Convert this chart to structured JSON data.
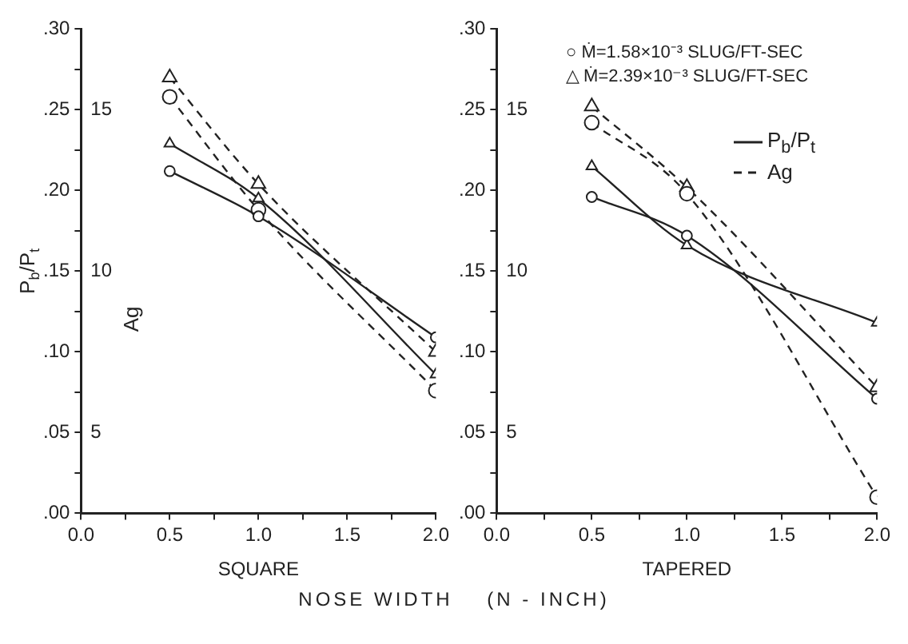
{
  "chart_data": [
    {
      "type": "line",
      "xlabel": "SQUARE",
      "ylabel": "P$_{b}$/P$_{t}$",
      "y2label": "Ag",
      "x": [
        0.5,
        1.0,
        2.0
      ],
      "xlim": [
        0,
        2
      ],
      "xticks": [
        {
          "value": 0,
          "label": "0.0"
        },
        {
          "value": 0.25,
          "label": null
        },
        {
          "value": 0.5,
          "label": "0.5"
        },
        {
          "value": 0.75,
          "label": null
        },
        {
          "value": 1,
          "label": "1.0"
        },
        {
          "value": 1.25,
          "label": null
        },
        {
          "value": 1.5,
          "label": "1.5"
        },
        {
          "value": 1.75,
          "label": null
        },
        {
          "value": 2,
          "label": "2.0"
        }
      ],
      "ylim": [
        0,
        0.3
      ],
      "yticks": [
        {
          "value": 0,
          "label": ".00"
        },
        {
          "value": 0.025,
          "label": null
        },
        {
          "value": 0.05,
          "label": ".05"
        },
        {
          "value": 0.075,
          "label": null
        },
        {
          "value": 0.1,
          "label": ".10"
        },
        {
          "value": 0.125,
          "label": null
        },
        {
          "value": 0.15,
          "label": ".15"
        },
        {
          "value": 0.175,
          "label": null
        },
        {
          "value": 0.2,
          "label": ".20"
        },
        {
          "value": 0.225,
          "label": null
        },
        {
          "value": 0.25,
          "label": ".25"
        },
        {
          "value": 0.275,
          "label": null
        },
        {
          "value": 0.3,
          "label": ".30"
        }
      ],
      "y2lim": [
        2.5,
        17.5
      ],
      "y2ticks": [
        5,
        10,
        15
      ],
      "grid": false,
      "series": [
        {
          "color": "#222222",
          "values": [
            0.212,
            0.184,
            0.109
          ],
          "marker": "circle",
          "line_style": "solid"
        },
        {
          "color": "#222222",
          "values": [
            0.229,
            0.195,
            0.086
          ],
          "marker": "triangle",
          "line_style": "solid"
        },
        {
          "color": "#222222",
          "values": [
            15.4,
            11.9,
            6.3
          ],
          "marker": "circle",
          "line_style": "dashed",
          "axis": "y2"
        },
        {
          "color": "#222222",
          "values": [
            16.0,
            12.7,
            7.5
          ],
          "marker": "triangle",
          "line_style": "dashed",
          "axis": "y2"
        }
      ],
      "annotations": [
        "NOSE WIDTH    (N - INCH)"
      ]
    },
    {
      "type": "line",
      "xlabel": "TAPERED",
      "x": [
        0.5,
        1.0,
        2.0
      ],
      "xlim": [
        0,
        2
      ],
      "xticks": [
        {
          "value": 0,
          "label": "0.0"
        },
        {
          "value": 0.25,
          "label": null
        },
        {
          "value": 0.5,
          "label": "0.5"
        },
        {
          "value": 0.75,
          "label": null
        },
        {
          "value": 1,
          "label": "1.0"
        },
        {
          "value": 1.25,
          "label": null
        },
        {
          "value": 1.5,
          "label": "1.5"
        },
        {
          "value": 1.75,
          "label": null
        },
        {
          "value": 2,
          "label": "2.0"
        }
      ],
      "ylim": [
        0,
        0.3
      ],
      "yticks": [
        {
          "value": 0,
          "label": ".00"
        },
        {
          "value": 0.025,
          "label": null
        },
        {
          "value": 0.05,
          "label": ".05"
        },
        {
          "value": 0.075,
          "label": null
        },
        {
          "value": 0.1,
          "label": ".10"
        },
        {
          "value": 0.125,
          "label": null
        },
        {
          "value": 0.15,
          "label": ".15"
        },
        {
          "value": 0.175,
          "label": null
        },
        {
          "value": 0.2,
          "label": ".20"
        },
        {
          "value": 0.225,
          "label": null
        },
        {
          "value": 0.25,
          "label": ".25"
        },
        {
          "value": 0.275,
          "label": null
        },
        {
          "value": 0.3,
          "label": ".30"
        }
      ],
      "y2lim": [
        2.5,
        17.5
      ],
      "y2ticks": [
        5,
        10,
        15
      ],
      "grid": false,
      "series": [
        {
          "color": "#222222",
          "values": [
            0.196,
            0.172,
            0.071
          ],
          "marker": "circle",
          "line_style": "solid"
        },
        {
          "color": "#222222",
          "values": [
            0.215,
            0.166,
            0.118
          ],
          "marker": "triangle",
          "line_style": "solid"
        },
        {
          "color": "#222222",
          "values": [
            14.6,
            12.4,
            3.0
          ],
          "marker": "circle",
          "line_style": "dashed",
          "axis": "y2"
        },
        {
          "color": "#222222",
          "values": [
            15.1,
            12.6,
            6.4
          ],
          "marker": "triangle",
          "line_style": "dashed",
          "axis": "y2"
        }
      ],
      "annotations": [
        "○ Ṁ=1.58×10⁻³ SLUG/FT-SEC",
        "△ Ṁ=2.39×10⁻³ SLUG/FT-SEC",
        "P$_{b}$/P$_{t}$",
        "Ag"
      ]
    }
  ]
}
